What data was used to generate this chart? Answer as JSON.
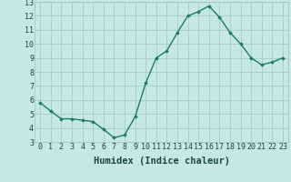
{
  "x": [
    0,
    1,
    2,
    3,
    4,
    5,
    6,
    7,
    8,
    9,
    10,
    11,
    12,
    13,
    14,
    15,
    16,
    17,
    18,
    19,
    20,
    21,
    22,
    23
  ],
  "y": [
    5.8,
    5.2,
    4.65,
    4.65,
    4.55,
    4.45,
    3.9,
    3.3,
    3.5,
    4.8,
    7.2,
    9.0,
    9.5,
    10.8,
    12.0,
    12.3,
    12.7,
    11.9,
    10.8,
    10.0,
    9.0,
    8.5,
    8.7,
    9.0
  ],
  "xlabel": "Humidex (Indice chaleur)",
  "xlim": [
    -0.5,
    23.5
  ],
  "ylim": [
    3,
    13
  ],
  "yticks": [
    3,
    4,
    5,
    6,
    7,
    8,
    9,
    10,
    11,
    12,
    13
  ],
  "xticks": [
    0,
    1,
    2,
    3,
    4,
    5,
    6,
    7,
    8,
    9,
    10,
    11,
    12,
    13,
    14,
    15,
    16,
    17,
    18,
    19,
    20,
    21,
    22,
    23
  ],
  "line_color": "#1f7a6a",
  "bg_color": "#c5e8e0",
  "grid_color": "#a0c8bc",
  "label_color": "#1a4a3a",
  "tick_fontsize": 6.0,
  "xlabel_fontsize": 7.5
}
